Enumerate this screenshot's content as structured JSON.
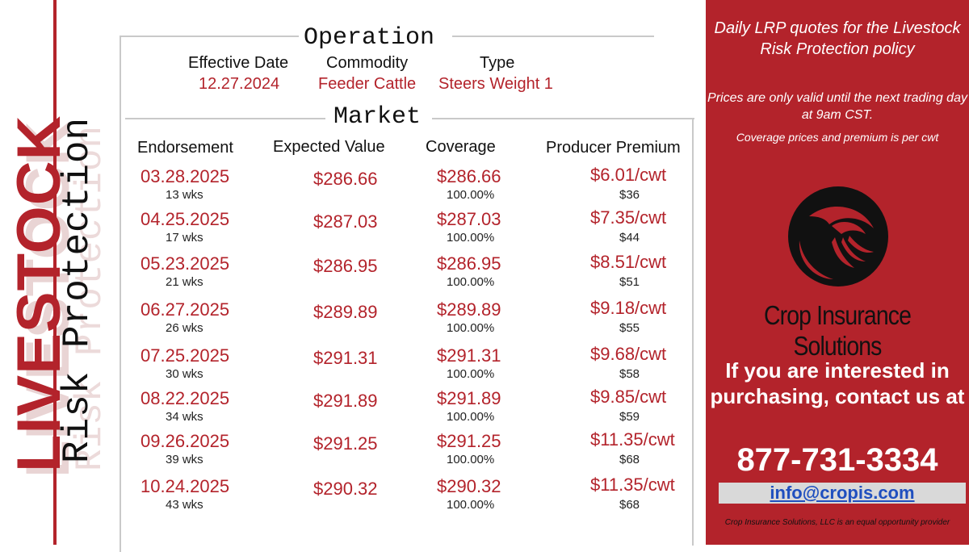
{
  "branding": {
    "vertical_title": "LIVESTOCK",
    "vertical_subtitle": "Risk Protection"
  },
  "operation": {
    "title": "Operation",
    "effective_date_label": "Effective Date",
    "effective_date": "12.27.2024",
    "commodity_label": "Commodity",
    "commodity": "Feeder Cattle",
    "type_label": "Type",
    "type": "Steers Weight 1"
  },
  "market": {
    "title": "Market",
    "headers": {
      "endorsement": "Endorsement",
      "expected_value": "Expected Value",
      "coverage": "Coverage",
      "premium": "Producer Premium"
    },
    "rows": [
      {
        "date": "03.28.2025",
        "weeks": "13 wks",
        "expected": "$286.66",
        "coverage": "$286.66",
        "coverage_pct": "100.00%",
        "premium": "$6.01/cwt",
        "premium_total": "$36"
      },
      {
        "date": "04.25.2025",
        "weeks": "17 wks",
        "expected": "$287.03",
        "coverage": "$287.03",
        "coverage_pct": "100.00%",
        "premium": "$7.35/cwt",
        "premium_total": "$44"
      },
      {
        "date": "05.23.2025",
        "weeks": "21 wks",
        "expected": "$286.95",
        "coverage": "$286.95",
        "coverage_pct": "100.00%",
        "premium": "$8.51/cwt",
        "premium_total": "$51"
      },
      {
        "date": "06.27.2025",
        "weeks": "26 wks",
        "expected": "$289.89",
        "coverage": "$289.89",
        "coverage_pct": "100.00%",
        "premium": "$9.18/cwt",
        "premium_total": "$55"
      },
      {
        "date": "07.25.2025",
        "weeks": "30 wks",
        "expected": "$291.31",
        "coverage": "$291.31",
        "coverage_pct": "100.00%",
        "premium": "$9.68/cwt",
        "premium_total": "$58"
      },
      {
        "date": "08.22.2025",
        "weeks": "34 wks",
        "expected": "$291.89",
        "coverage": "$291.89",
        "coverage_pct": "100.00%",
        "premium": "$9.85/cwt",
        "premium_total": "$59"
      },
      {
        "date": "09.26.2025",
        "weeks": "39 wks",
        "expected": "$291.25",
        "coverage": "$291.25",
        "coverage_pct": "100.00%",
        "premium": "$11.35/cwt",
        "premium_total": "$68"
      },
      {
        "date": "10.24.2025",
        "weeks": "43 wks",
        "expected": "$290.32",
        "coverage": "$290.32",
        "coverage_pct": "100.00%",
        "premium": "$11.35/cwt",
        "premium_total": "$68"
      }
    ]
  },
  "sidebar": {
    "intro": "Daily LRP quotes for the Livestock Risk Protection policy",
    "validity_note": "Prices are only valid until the next trading day at 9am CST.",
    "unit_note": "Coverage prices and premium is per cwt",
    "logo_icon": "crop-insurance-swirl-logo",
    "company": "Crop Insurance Solutions",
    "cta": "If you are interested in purchasing, contact us at",
    "phone": "877-731-3334",
    "email": "info@cropis.com",
    "eeo": "Crop Insurance Solutions, LLC is an equal opportunity provider"
  },
  "colors": {
    "brand_red": "#b3232b",
    "text_dark": "#111111",
    "link_blue": "#1f4fbf"
  }
}
